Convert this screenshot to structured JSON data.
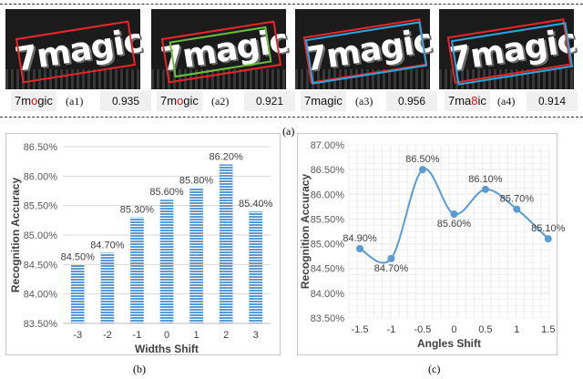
{
  "top_row": {
    "tiles": [
      {
        "id": "a1",
        "word": "7magic",
        "pred_prefix": "7m",
        "pred_err": "o",
        "pred_suffix": "gic",
        "tag": "(a1)",
        "score": "0.935"
      },
      {
        "id": "a2",
        "word": "7magic",
        "pred_prefix": "7m",
        "pred_err": "o",
        "pred_suffix": "gic",
        "tag": "(a2)",
        "score": "0.921"
      },
      {
        "id": "a3",
        "word": "7magic",
        "pred_prefix": "7magic",
        "pred_err": "",
        "pred_suffix": "",
        "tag": "(a3)",
        "score": "0.956"
      },
      {
        "id": "a4",
        "word": "7magic",
        "pred_prefix": "7ma",
        "pred_err": "8",
        "pred_suffix": "ic",
        "tag": "(a4)",
        "score": "0.914"
      }
    ],
    "caption": "(a)"
  },
  "captions": {
    "b": "(b)",
    "c": "(c)"
  },
  "colors": {
    "box_red": "#e8252b",
    "box_green": "#6cbf3a",
    "box_cyan": "#2aa7e0",
    "bar_blue": "#5b9bd5",
    "error_red": "#e01010"
  },
  "chart_data": [
    {
      "type": "bar",
      "categories": [
        "-3",
        "-2",
        "-1",
        "0",
        "1",
        "2",
        "3"
      ],
      "values": [
        84.5,
        84.7,
        85.3,
        85.6,
        85.8,
        86.2,
        85.4
      ],
      "labels": [
        "84.50%",
        "84.70%",
        "85.30%",
        "85.60%",
        "85.80%",
        "86.20%",
        "85.40%"
      ],
      "xlabel": "Widths  Shift",
      "ylabel": "Recognition Accuracy",
      "ylim": [
        83.5,
        86.5
      ],
      "yticks": [
        "83.50%",
        "84.00%",
        "84.50%",
        "85.00%",
        "85.50%",
        "86.00%",
        "86.50%"
      ],
      "grid": true
    },
    {
      "type": "line",
      "x": [
        "-1.5",
        "-1",
        "-0.5",
        "0",
        "0.5",
        "1",
        "1.5"
      ],
      "values": [
        84.9,
        84.7,
        86.5,
        85.6,
        86.1,
        85.7,
        85.1
      ],
      "labels": [
        "84.90%",
        "84.70%",
        "86.50%",
        "85.60%",
        "86.10%",
        "85.70%",
        "85.10%"
      ],
      "xlabel": "Angles  Shift",
      "ylabel": "Recognition Accuracy",
      "ylim": [
        83.5,
        87.0
      ],
      "yticks": [
        "83.50%",
        "84.00%",
        "84.50%",
        "85.00%",
        "85.50%",
        "86.00%",
        "86.50%",
        "87.00%"
      ],
      "grid": true
    }
  ]
}
